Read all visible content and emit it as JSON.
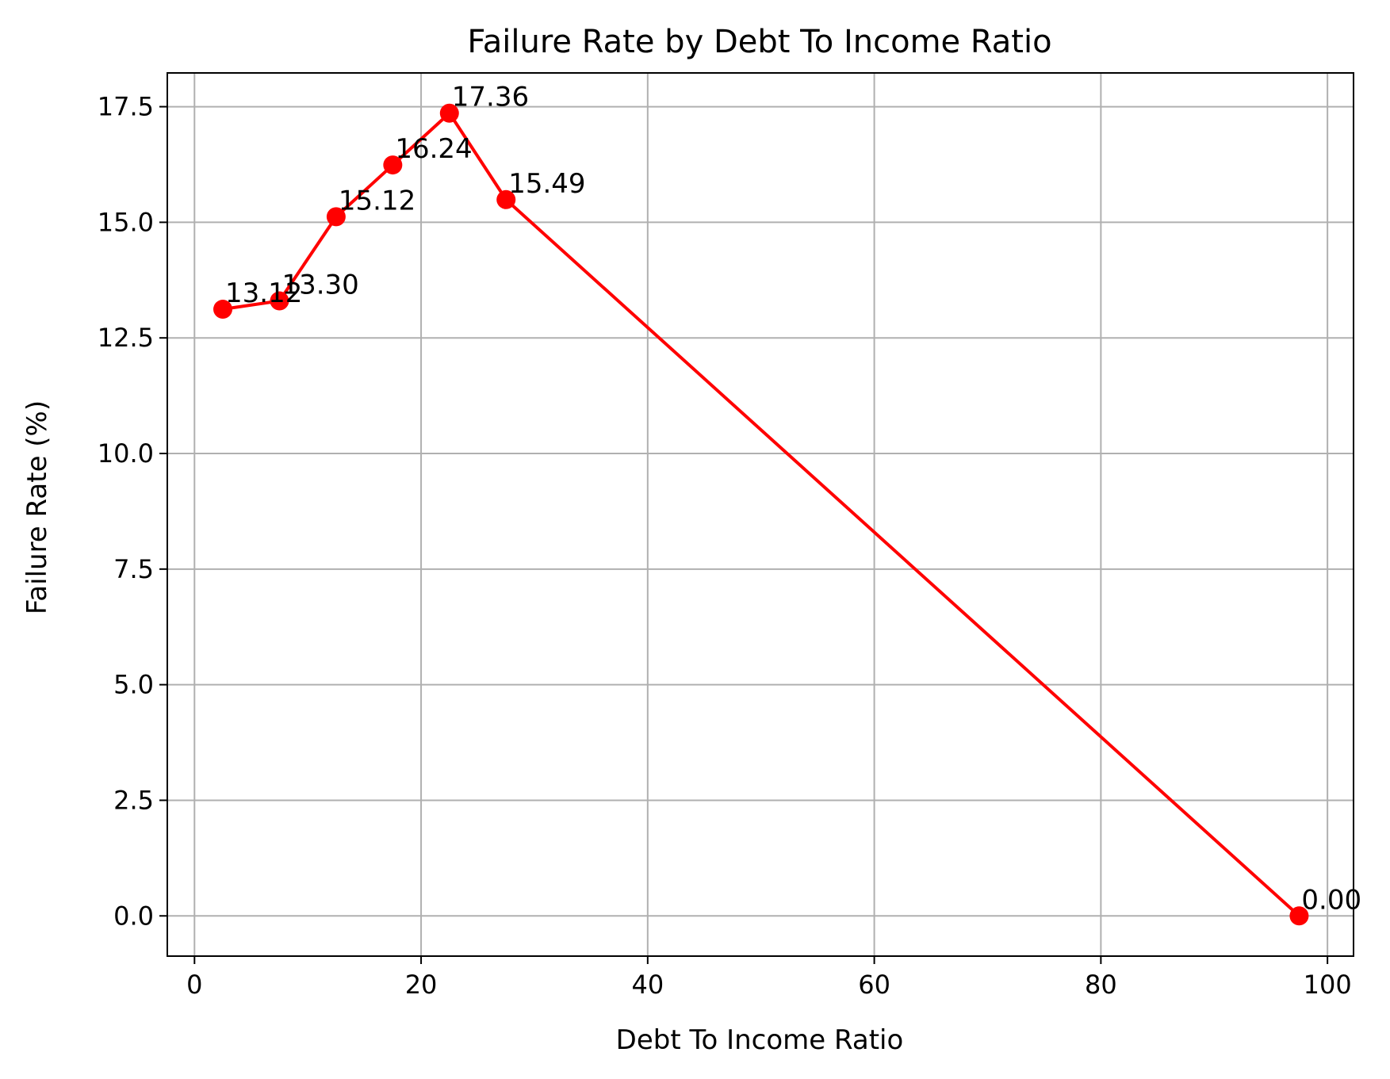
{
  "chart_data": {
    "type": "line",
    "title": "Failure Rate by Debt To Income Ratio",
    "xlabel": "Debt To Income Ratio",
    "ylabel": "Failure Rate (%)",
    "xlim": [
      -2.4,
      102.3
    ],
    "ylim": [
      -0.87,
      18.23
    ],
    "xticks": [
      0,
      20,
      40,
      60,
      80,
      100
    ],
    "yticks": [
      0.0,
      2.5,
      5.0,
      7.5,
      10.0,
      12.5,
      15.0,
      17.5
    ],
    "grid": true,
    "series": [
      {
        "color": "#ff0000",
        "marker": "circle",
        "x": [
          2.5,
          7.5,
          12.5,
          17.5,
          22.5,
          27.5,
          97.5
        ],
        "y": [
          13.12,
          13.3,
          15.12,
          16.24,
          17.36,
          15.49,
          0.0
        ],
        "labels": [
          "13.12",
          "13.30",
          "15.12",
          "16.24",
          "17.36",
          "15.49",
          "0.00"
        ]
      }
    ]
  }
}
